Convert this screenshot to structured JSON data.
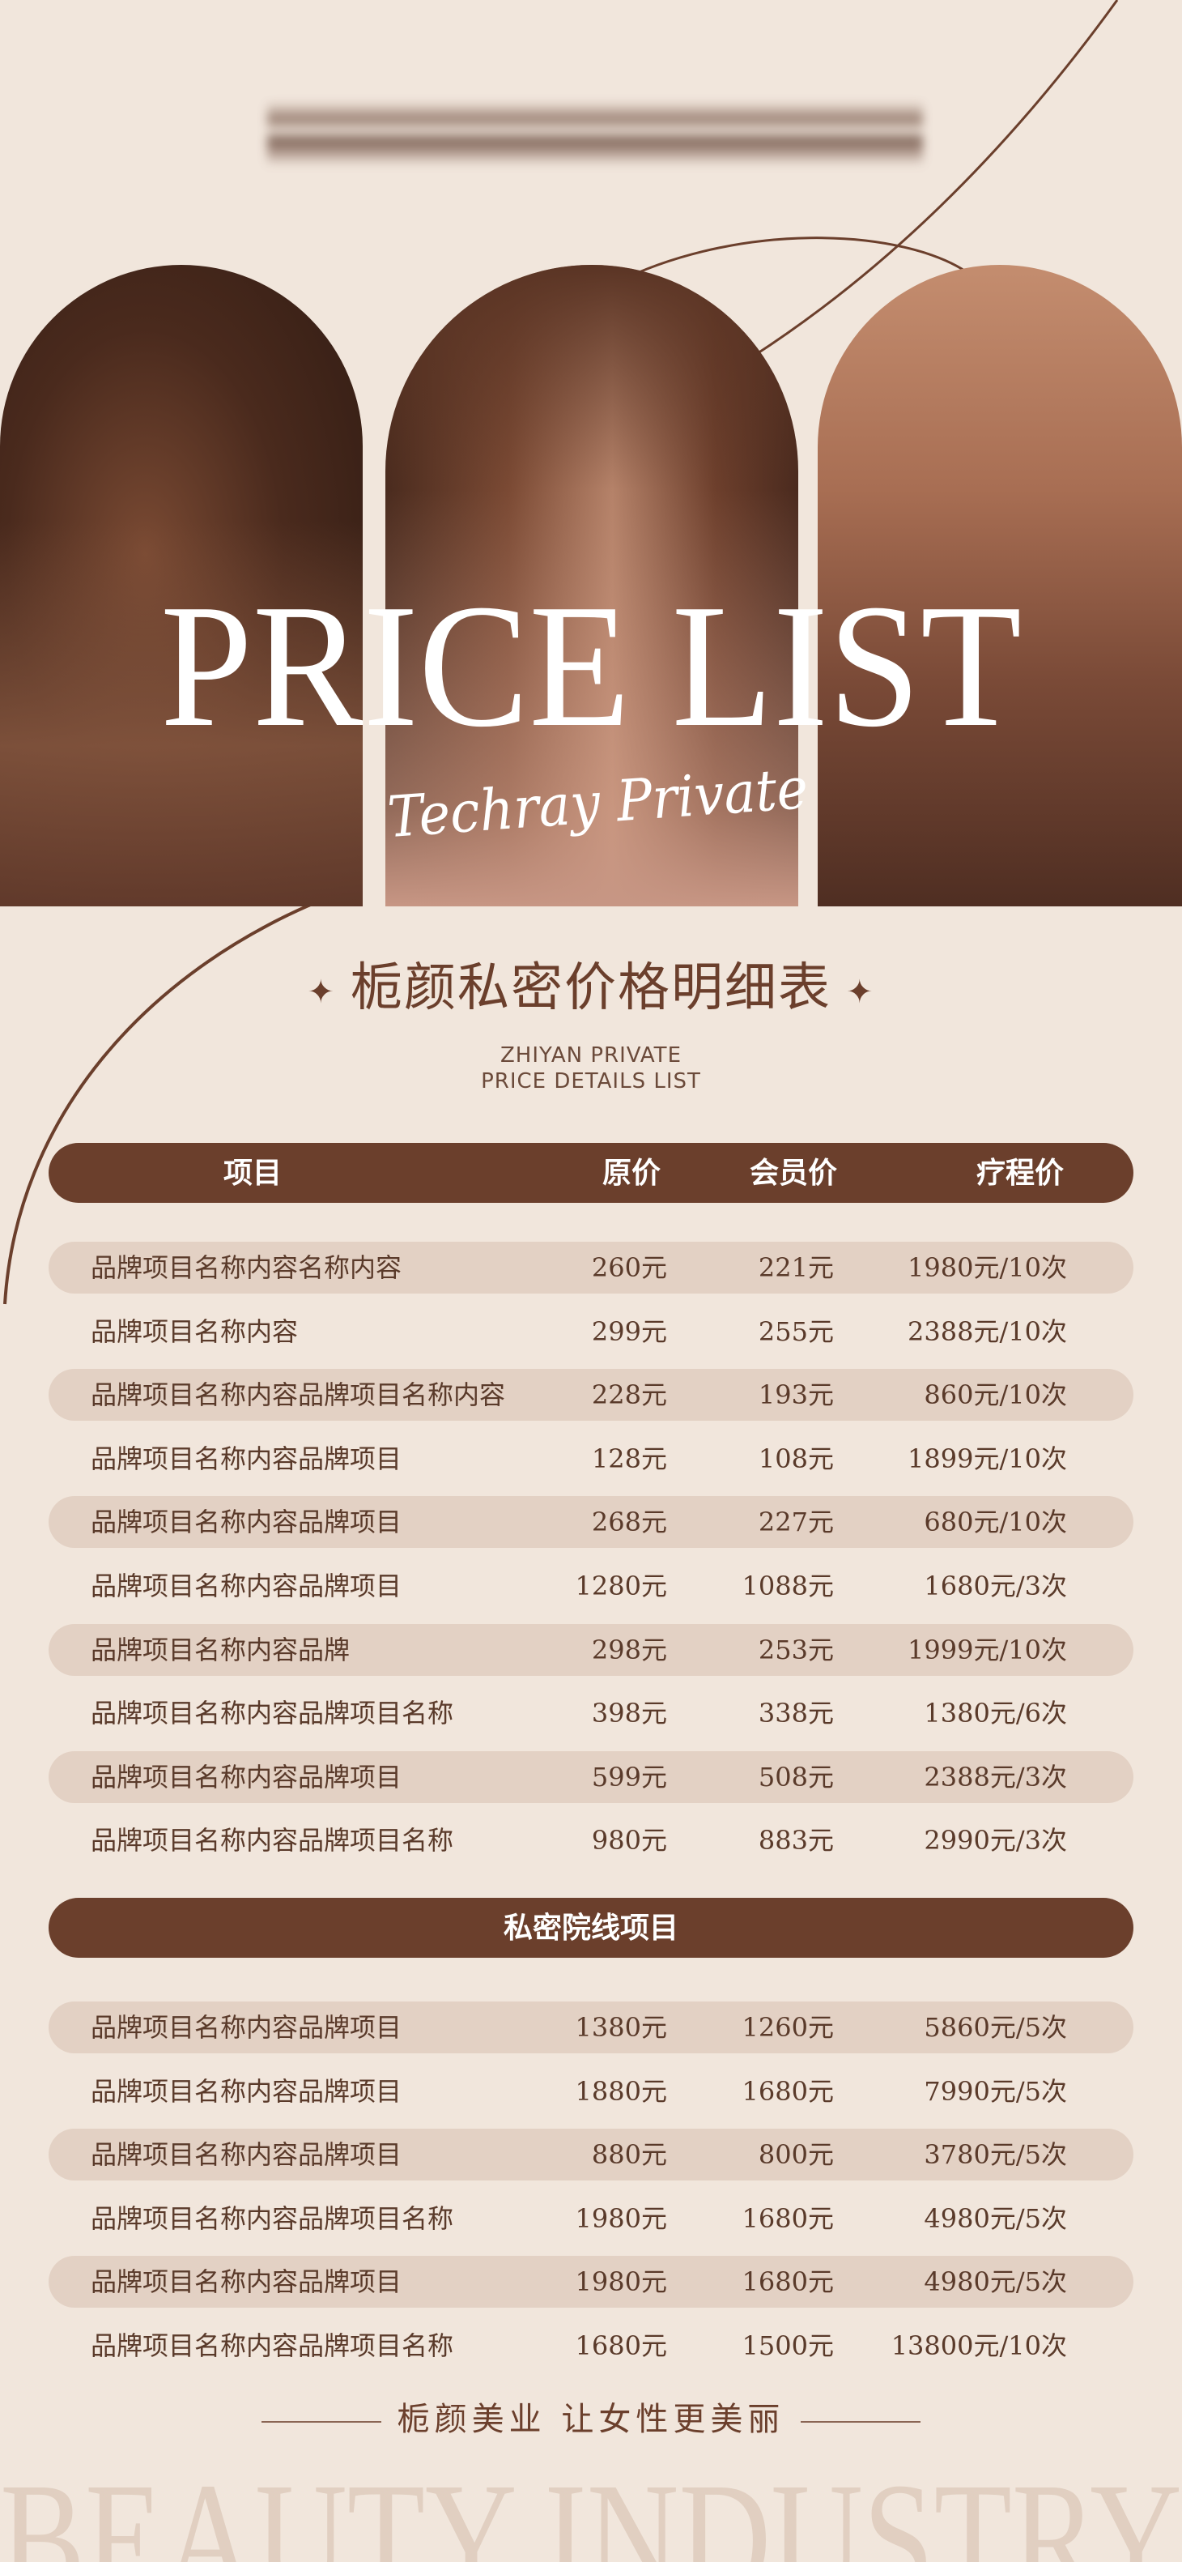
{
  "hero": {
    "title": "PRICE LIST",
    "script": "Techray Private"
  },
  "heading": {
    "title": "栀颜私密价格明细表",
    "sub1": "ZHIYAN PRIVATE",
    "sub2": "PRICE DETAILS LIST",
    "star_icon": "✦"
  },
  "table": {
    "headers": [
      "项目",
      "原价",
      "会员价",
      "疗程价"
    ],
    "rows": [
      [
        "品牌项目名称内容名称内容",
        "260元",
        "221元",
        "1980元/10次"
      ],
      [
        "品牌项目名称内容",
        "299元",
        "255元",
        "2388元/10次"
      ],
      [
        "品牌项目名称内容品牌项目名称内容",
        "228元",
        "193元",
        "860元/10次"
      ],
      [
        "品牌项目名称内容品牌项目",
        "128元",
        "108元",
        "1899元/10次"
      ],
      [
        "品牌项目名称内容品牌项目",
        "268元",
        "227元",
        "680元/10次"
      ],
      [
        "品牌项目名称内容品牌项目",
        "1280元",
        "1088元",
        "1680元/3次"
      ],
      [
        "品牌项目名称内容品牌",
        "298元",
        "253元",
        "1999元/10次"
      ],
      [
        "品牌项目名称内容品牌项目名称",
        "398元",
        "338元",
        "1380元/6次"
      ],
      [
        "品牌项目名称内容品牌项目",
        "599元",
        "508元",
        "2388元/3次"
      ],
      [
        "品牌项目名称内容品牌项目名称",
        "980元",
        "883元",
        "2990元/3次"
      ]
    ]
  },
  "section2": {
    "title": "私密院线项目",
    "rows": [
      [
        "品牌项目名称内容品牌项目",
        "1380元",
        "1260元",
        "5860元/5次"
      ],
      [
        "品牌项目名称内容品牌项目",
        "1880元",
        "1680元",
        "7990元/5次"
      ],
      [
        "品牌项目名称内容品牌项目",
        "880元",
        "800元",
        "3780元/5次"
      ],
      [
        "品牌项目名称内容品牌项目名称",
        "1980元",
        "1680元",
        "4980元/5次"
      ],
      [
        "品牌项目名称内容品牌项目",
        "1980元",
        "1680元",
        "4980元/5次"
      ],
      [
        "品牌项目名称内容品牌项目名称",
        "1680元",
        "1500元",
        "13800元/10次"
      ]
    ]
  },
  "footer": {
    "slogan": "栀颜美业 让女性更美丽",
    "background_word": "BEAUTY INDUSTRY"
  },
  "colors": {
    "background": "#f1e6dc",
    "accent": "#6b3f2c",
    "row_shade": "#e3d1c4",
    "text": "#5a3a2a"
  }
}
